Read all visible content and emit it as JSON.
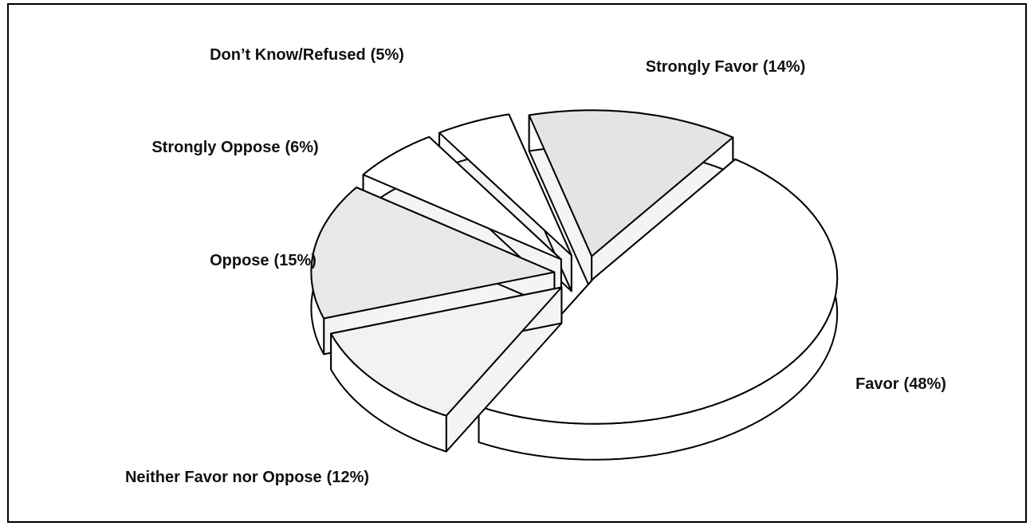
{
  "chart_data": {
    "type": "pie",
    "categories": [
      "Strongly Favor",
      "Favor",
      "Neither Favor nor Oppose",
      "Oppose",
      "Strongly Oppose",
      "Don’t Know/Refused"
    ],
    "values": [
      14,
      48,
      12,
      15,
      6,
      5
    ],
    "value_labels": [
      "(14%)",
      "(48%)",
      "(12%)",
      "(15%)",
      "(6%)",
      "(5%)"
    ],
    "colors": [
      "#e4e4e4",
      "#ffffff",
      "#f2f2f2",
      "#e8e8e8",
      "#ffffff",
      "#ffffff"
    ]
  }
}
